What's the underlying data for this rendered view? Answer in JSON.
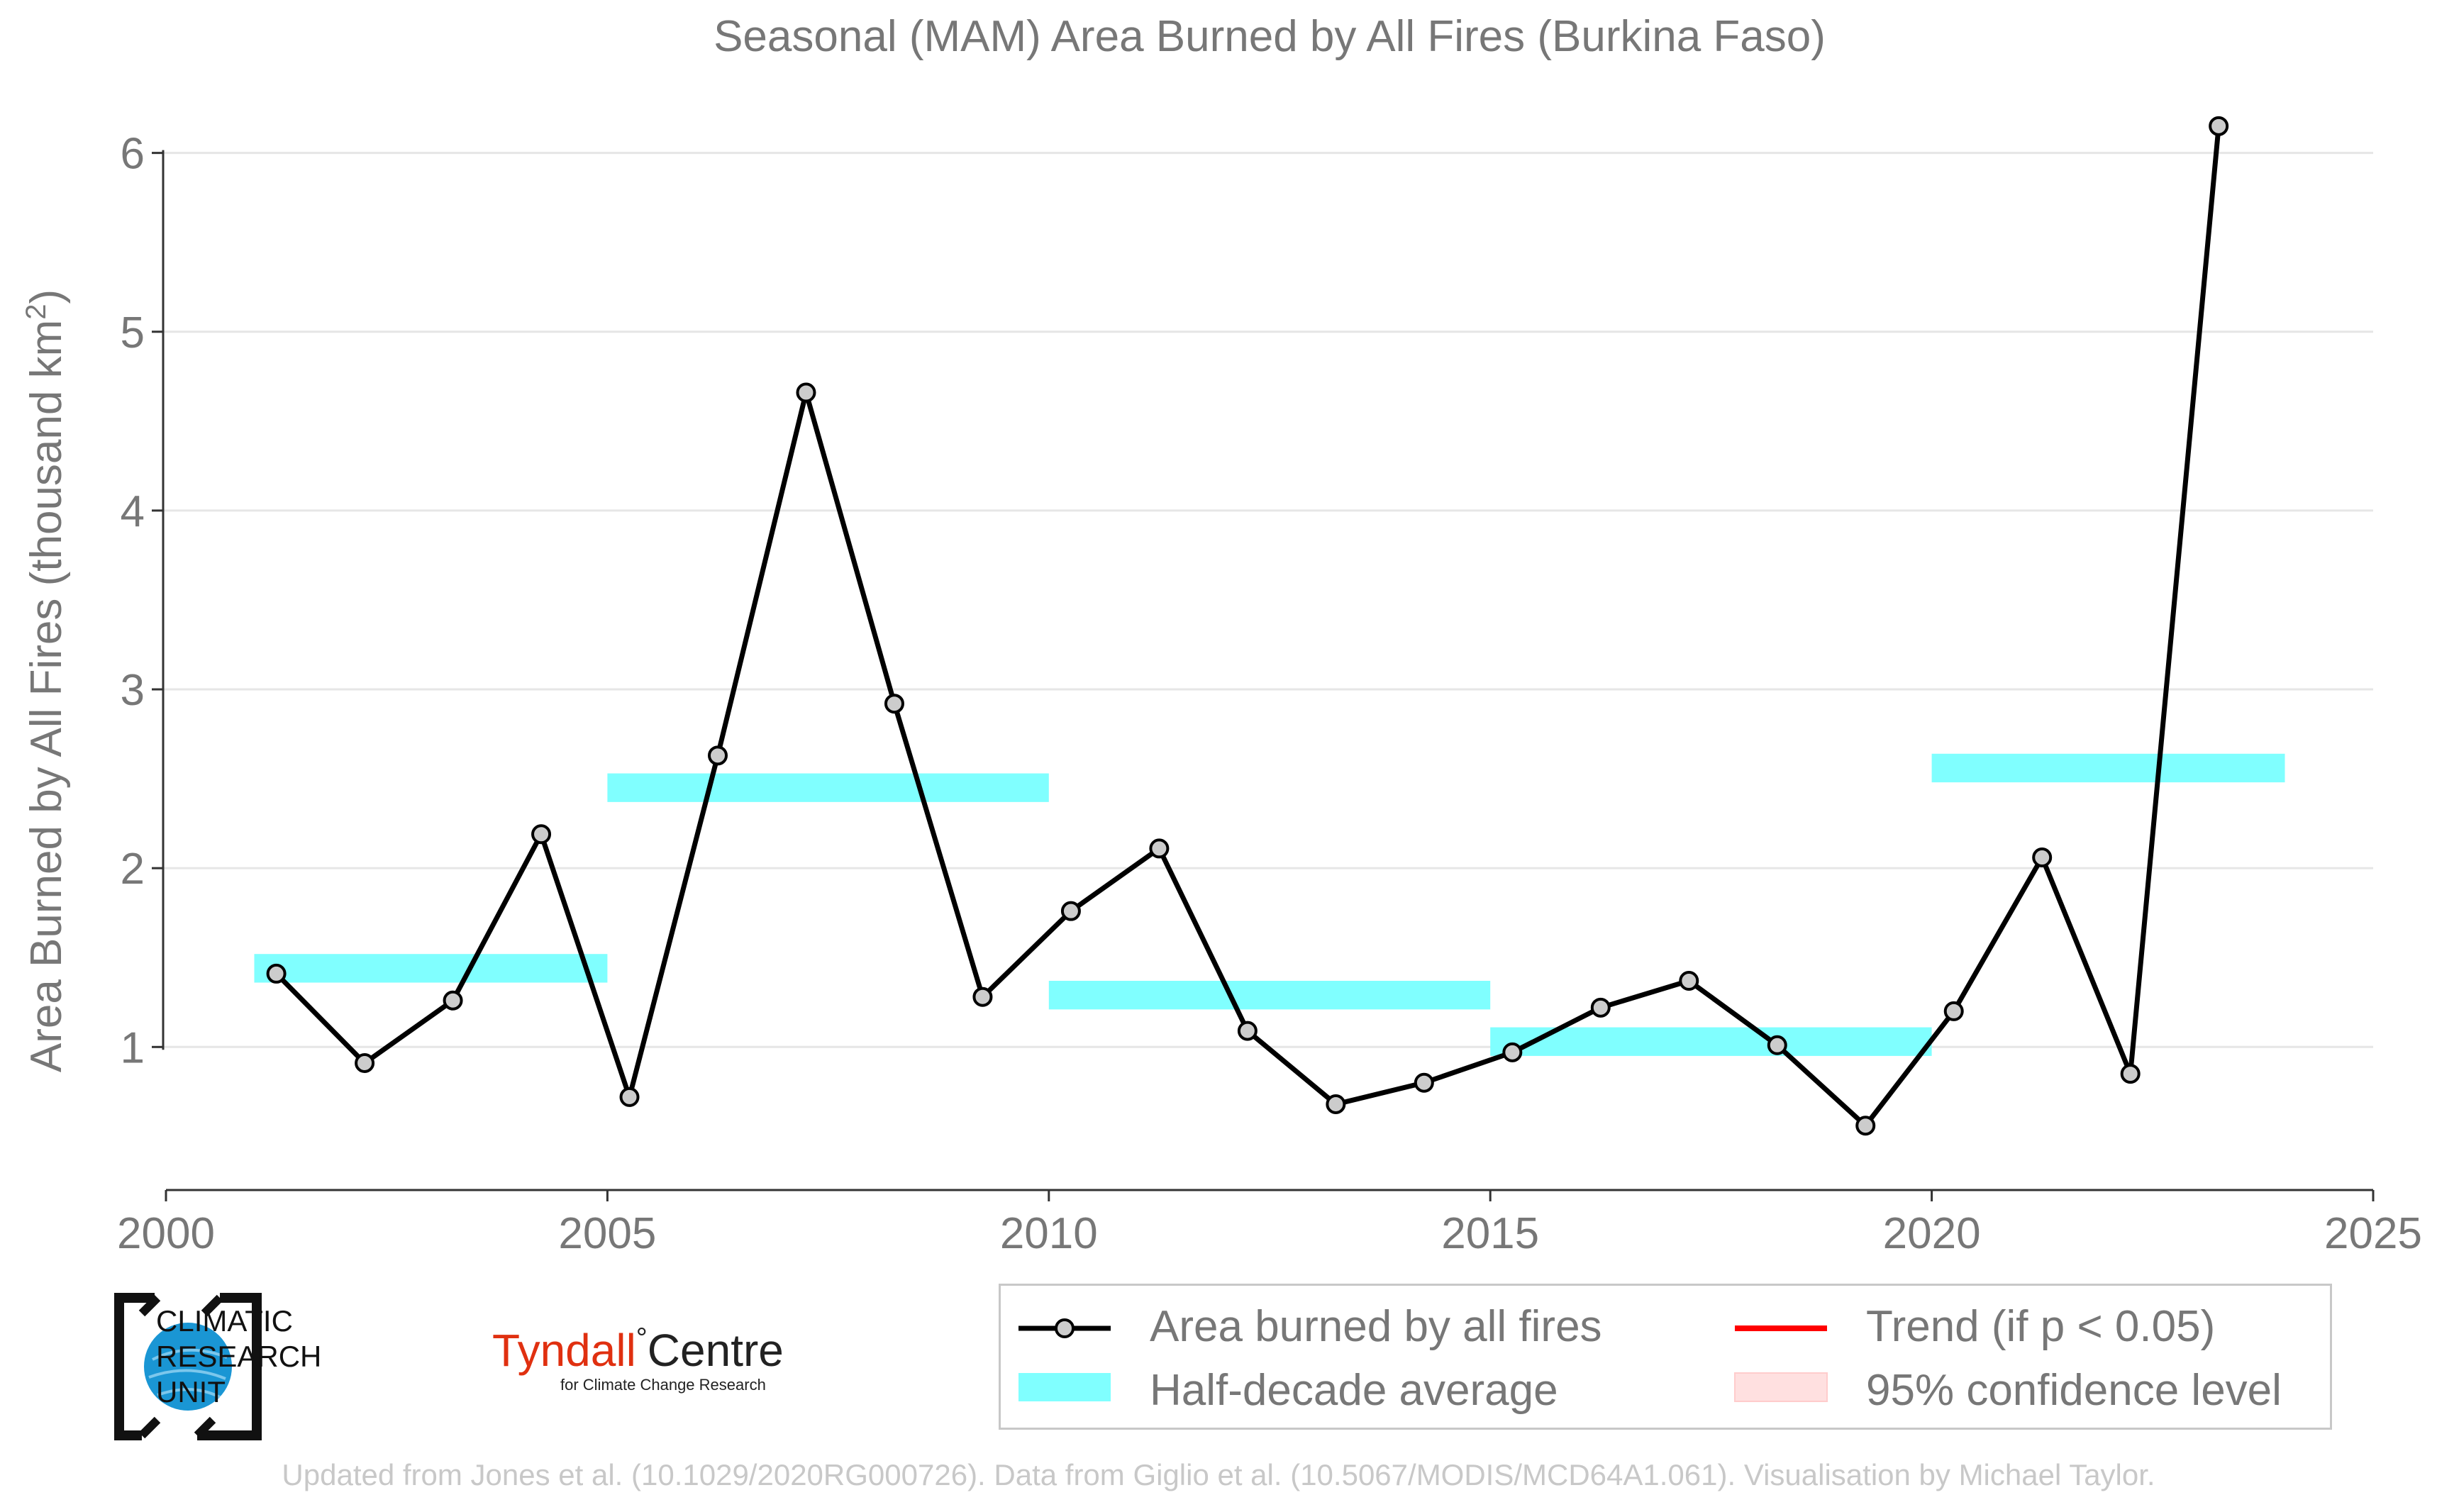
{
  "chart_data": {
    "type": "line",
    "title": "Seasonal (MAM) Area Burned by All Fires (Burkina Faso)",
    "ylabel": "Area Burned by All Fires (thousand km",
    "ylabel_sup": "2",
    "ylabel_close": ")",
    "xlim": [
      2000,
      2025
    ],
    "ylim": [
      0.2,
      6.3
    ],
    "x_ticks": [
      2000,
      2005,
      2010,
      2015,
      2020,
      2025
    ],
    "y_ticks": [
      1,
      2,
      3,
      4,
      5,
      6
    ],
    "grid": "horizontal",
    "series": [
      {
        "name": "Area burned by all fires",
        "color": "#000000",
        "marker_fill": "#cccccc",
        "x": [
          2001.25,
          2002.25,
          2003.25,
          2004.25,
          2005.25,
          2006.25,
          2007.25,
          2008.25,
          2009.25,
          2010.25,
          2011.25,
          2012.25,
          2013.25,
          2014.25,
          2015.25,
          2016.25,
          2017.25,
          2018.25,
          2019.25,
          2020.25,
          2021.25,
          2022.25,
          2023.25
        ],
        "y": [
          1.41,
          0.91,
          1.26,
          2.19,
          0.72,
          2.63,
          4.66,
          2.92,
          1.28,
          1.76,
          2.11,
          1.09,
          0.68,
          0.8,
          0.97,
          1.22,
          1.37,
          1.01,
          0.56,
          1.2,
          2.06,
          0.85,
          6.15
        ]
      }
    ],
    "half_decade_averages": [
      {
        "x_start": 2001,
        "x_end": 2005,
        "value": 1.44
      },
      {
        "x_start": 2005,
        "x_end": 2010,
        "value": 2.45
      },
      {
        "x_start": 2010,
        "x_end": 2015,
        "value": 1.29
      },
      {
        "x_start": 2015,
        "x_end": 2020,
        "value": 1.03
      },
      {
        "x_start": 2020,
        "x_end": 2024,
        "value": 2.56
      }
    ],
    "legend": {
      "placement": "bottom-right",
      "items": [
        {
          "label": "Area burned by all fires",
          "kind": "line-marker",
          "color": "#000000"
        },
        {
          "label": "Trend (if p < 0.05)",
          "kind": "line",
          "color": "#ff0000"
        },
        {
          "label": "Half-decade average",
          "kind": "band",
          "color": "#80ffff"
        },
        {
          "label": "95% confidence level",
          "kind": "band",
          "color": "#ffe0e0"
        }
      ]
    },
    "colors": {
      "line": "#000000",
      "marker_fill": "#cccccc",
      "half_decade": "#80ffff",
      "trend": "#ff0000",
      "confidence": "#ffe0e0",
      "grid": "#e6e6e6",
      "text": "#777777"
    }
  },
  "logos": {
    "cru_lines": [
      "CLIMATIC",
      "RESEARCH",
      "UNIT"
    ],
    "tyndall_name": "Tyndall",
    "tyndall_centre": "Centre",
    "tyndall_sub": "for Climate Change Research"
  },
  "footer": "Updated from Jones et al. (10.1029/2020RG000726). Data from Giglio et al. (10.5067/MODIS/MCD64A1.061). Visualisation by Michael Taylor."
}
